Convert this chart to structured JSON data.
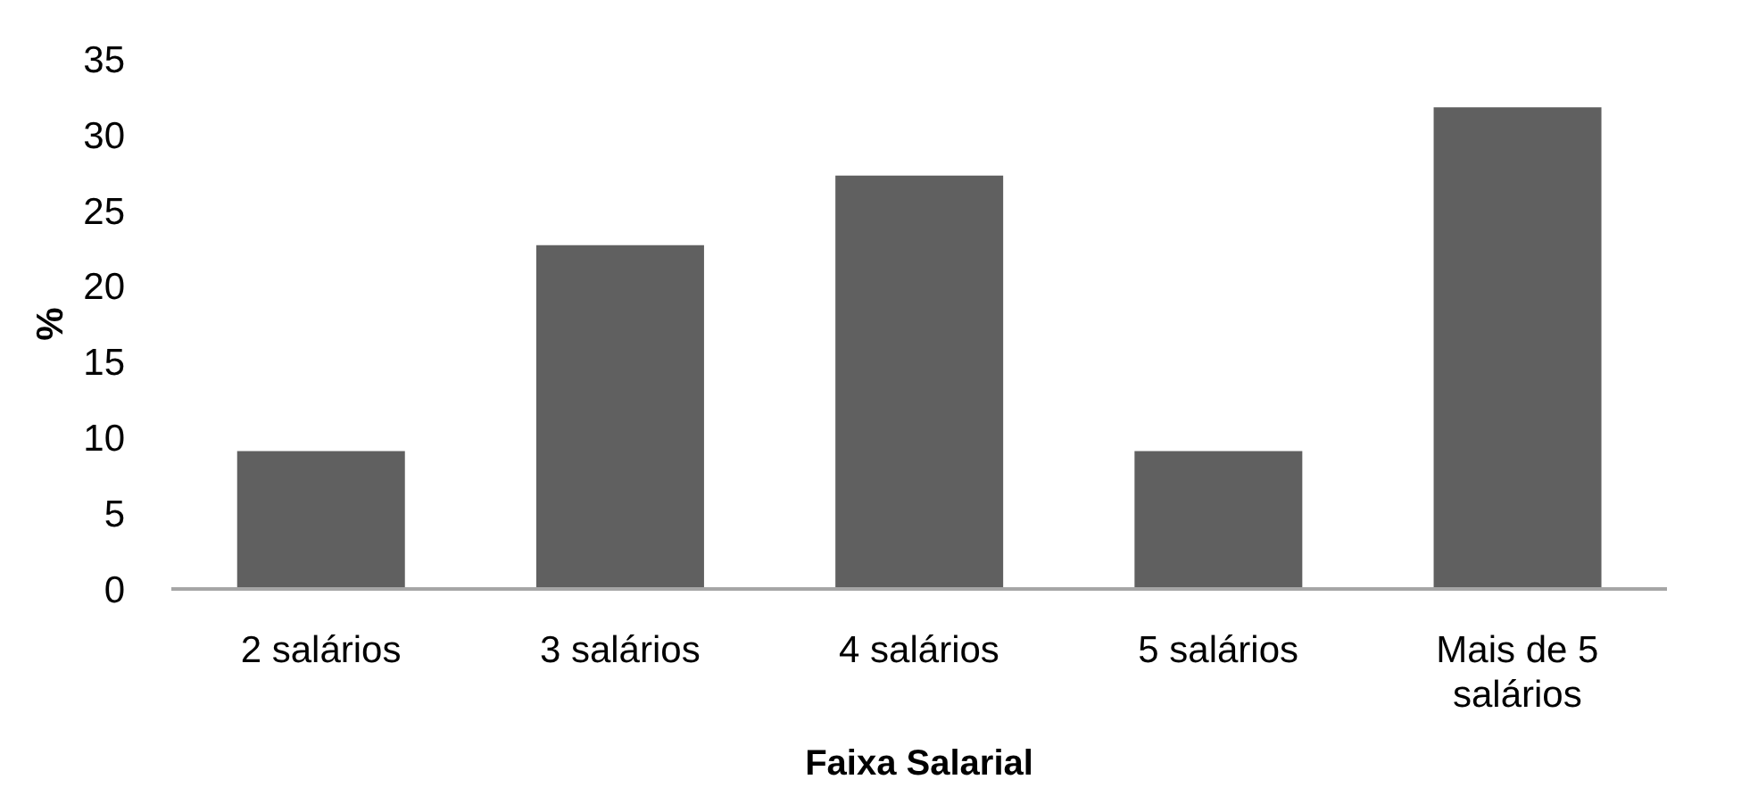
{
  "chart_data": {
    "type": "bar",
    "xlabel": "Faixa Salarial",
    "ylabel": "%",
    "categories": [
      "2 salários",
      "3 salários",
      "4 salários",
      "5 salários",
      "Mais de 5 salários"
    ],
    "values": [
      9.1,
      22.7,
      27.3,
      9.1,
      31.8
    ],
    "color": "#606060",
    "ylim": [
      0,
      35
    ],
    "yticks": [
      0,
      5,
      10,
      15,
      20,
      25,
      30,
      35
    ]
  }
}
